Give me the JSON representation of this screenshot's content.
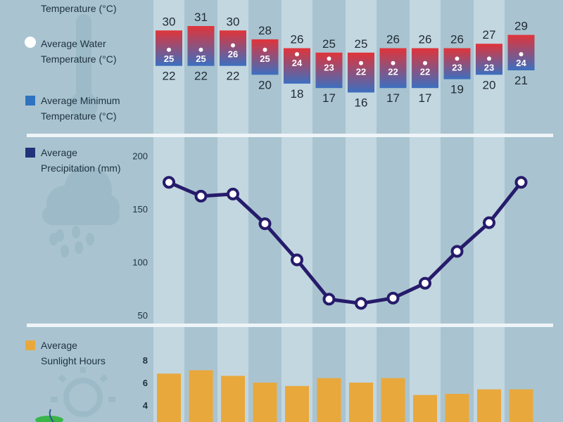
{
  "legend": {
    "max_temp_label_tail": "Temperature (°C)",
    "water_temp_line1": "Average Water",
    "water_temp_line2": "Temperature (°C)",
    "min_temp_line1": "Average Minimum",
    "min_temp_line2": "Temperature (°C)",
    "precip_line1": "Average",
    "precip_line2": "Precipitation (mm)",
    "sun_line1": "Average",
    "sun_line2": "Sunlight Hours"
  },
  "colors": {
    "background": "#a9c4d0",
    "column_band": "#c3d7e0",
    "max_temp_top": "#e0343a",
    "min_temp_bottom": "#3c6fc0",
    "water_dot": "#ffffff",
    "precip_line": "#261b6b",
    "sunlight_bar": "#e9a83c",
    "divider": "#eef4f7",
    "icons": "#8fb0bf"
  },
  "icons": [
    "thermometer-icon",
    "cloud-rain-icon",
    "sun-icon"
  ],
  "chart_data": [
    {
      "type": "bar",
      "title": "",
      "months_count": 12,
      "series": [
        {
          "name": "Average Maximum Temperature (°C)",
          "values": [
            30,
            31,
            30,
            28,
            26,
            25,
            25,
            26,
            26,
            26,
            27,
            29
          ]
        },
        {
          "name": "Average Water Temperature (°C)",
          "values": [
            25,
            25,
            26,
            25,
            24,
            23,
            22,
            22,
            22,
            23,
            23,
            24
          ]
        },
        {
          "name": "Average Minimum Temperature (°C)",
          "values": [
            22,
            22,
            22,
            20,
            18,
            17,
            16,
            17,
            17,
            19,
            20,
            21
          ]
        }
      ]
    },
    {
      "type": "line",
      "series": [
        {
          "name": "Average Precipitation (mm)",
          "values": [
            175,
            162,
            164,
            136,
            102,
            65,
            61,
            66,
            80,
            110,
            137,
            175
          ]
        }
      ],
      "yticks": [
        200,
        150,
        100,
        50
      ],
      "ylim": [
        50,
        200
      ]
    },
    {
      "type": "bar",
      "series": [
        {
          "name": "Average Sunlight Hours",
          "values": [
            6.8,
            7.1,
            6.6,
            6.0,
            5.7,
            6.4,
            6.0,
            6.4,
            4.9,
            5.0,
            5.4,
            5.4
          ]
        }
      ],
      "yticks": [
        8,
        6,
        4
      ],
      "ylim": [
        0,
        8
      ]
    }
  ]
}
